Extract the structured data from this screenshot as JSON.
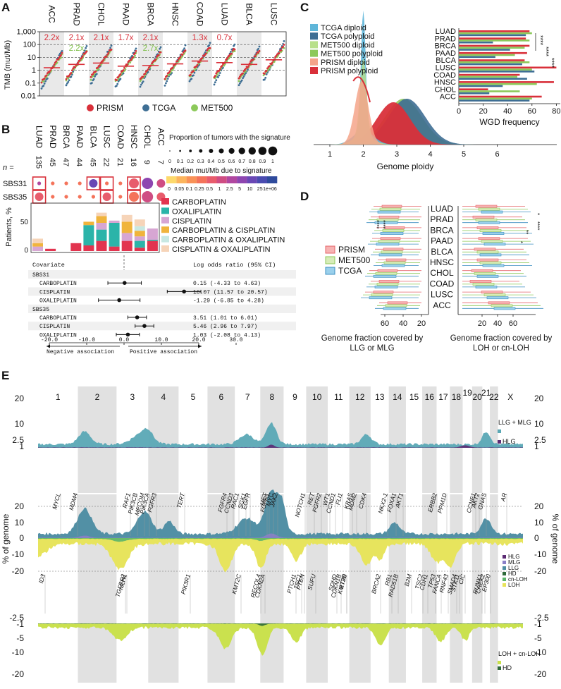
{
  "panel_labels": {
    "a": "A",
    "b": "B",
    "c": "C",
    "d": "D",
    "e": "E"
  },
  "panel_a": {
    "cancers": [
      "ACC",
      "PRAD",
      "CHOL",
      "PAAD",
      "BRCA",
      "HNSC",
      "COAD",
      "LUAD",
      "BLCA",
      "LUSC"
    ],
    "red_ratios": [
      "2.2x",
      "2.1x",
      "2.1x",
      "1.7x",
      "2.1x",
      "",
      "1.3x",
      "0.7x",
      "",
      ""
    ],
    "green_ratios": [
      "",
      "2.2x",
      "",
      "",
      "2.7x",
      "",
      "",
      "",
      "",
      ""
    ],
    "ylabel": "TMB (mut/Mb)",
    "yticks": [
      "1,000",
      "100",
      "10",
      "1",
      "0.1",
      "0.01"
    ],
    "legend": [
      "PRISM",
      "TCGA",
      "MET500"
    ],
    "colors": {
      "prism": "#d9303a",
      "tcga": "#3e6e94",
      "met500": "#8cc95a",
      "ratio_red": "#d9303a",
      "ratio_green": "#7fbf4a"
    }
  },
  "panel_b": {
    "cancers": [
      "LUAD",
      "PRAD",
      "BRCA",
      "PAAD",
      "BLCA",
      "LUSC",
      "COAD",
      "HNSC",
      "CHOL",
      "ACC"
    ],
    "n_label": "n =",
    "n": [
      "135",
      "45",
      "47",
      "44",
      "45",
      "22",
      "21",
      "16",
      "9",
      "7"
    ],
    "signatures": [
      "SBS31",
      "SBS35"
    ],
    "size_legend_title": "Proportion of tumors with the signature",
    "size_ticks": [
      "0",
      "0.1",
      "0.2",
      "0.3",
      "0.4",
      "0.5",
      "0.6",
      "0.7",
      "0.8",
      "0.9",
      "1"
    ],
    "color_legend_title": "Median mut/Mb due to signature",
    "color_ticks": [
      "0",
      "0.05",
      "0.1",
      "0.25",
      "0.5",
      "1",
      "2.5",
      "5",
      "10",
      "25",
      "1e+06"
    ],
    "color_scale": [
      "#fdd96b",
      "#fcb55d",
      "#f99257",
      "#f4735a",
      "#e85c6c",
      "#cf4d83",
      "#b047a0",
      "#8e46b0",
      "#6a48b5",
      "#4a4bb0",
      "#2e4a9c"
    ],
    "bar_ylabel": "Patients, %",
    "bar_yticks": [
      "50",
      "0"
    ],
    "treatments": [
      "CARBOPLATIN",
      "OXALIPLATIN",
      "CISPLATIN",
      "CARBOPLATIN & CISPLATIN",
      "CARBOPLATIN & OXALIPLATIN",
      "CISPLATIN & OXALIPLATIN"
    ],
    "treatment_colors": [
      "#e2344f",
      "#2bb4a9",
      "#d7a6d3",
      "#f0b43c",
      "#c8e8e2",
      "#f6d4b8"
    ],
    "forest_header_left": "Covariate",
    "forest_header_right": "Log odds ratio (95% CI)",
    "forest_rows": [
      {
        "label": "SBS31",
        "header": true
      },
      {
        "label": "CARBOPLATIN",
        "or": "0.15 (-4.33 to 4.63)",
        "est": 0.15,
        "lo": -4.33,
        "hi": 4.63
      },
      {
        "label": "CISPLATIN",
        "or": "16.07 (11.57 to 20.57)",
        "est": 16.07,
        "lo": 11.57,
        "hi": 20.57
      },
      {
        "label": "OXALIPLATIN",
        "or": "-1.29 (-6.85 to 4.28)",
        "est": -1.29,
        "lo": -6.85,
        "hi": 4.28
      },
      {
        "label": "SBS35",
        "header": true
      },
      {
        "label": "CARBOPLATIN",
        "or": "3.51 (1.01 to 6.01)",
        "est": 3.51,
        "lo": 1.01,
        "hi": 6.01
      },
      {
        "label": "CISPLATIN",
        "or": "5.46 (2.96 to 7.97)",
        "est": 5.46,
        "lo": 2.96,
        "hi": 7.97
      },
      {
        "label": "OXALIPLATIN",
        "or": "1.03 (-2.08 to 4.13)",
        "est": 1.03,
        "lo": -2.08,
        "hi": 4.13
      }
    ],
    "forest_xticks": [
      "-20.0",
      "-10.0",
      "0.0",
      "10.0",
      "20.0",
      "30.0"
    ],
    "negative_label": "Negative association",
    "positive_label": "Positive association"
  },
  "panel_c": {
    "legend": [
      "TCGA diploid",
      "TCGA polyploid",
      "MET500 diploid",
      "MET500 polyploid",
      "PRISM diploid",
      "PRISM polyploid"
    ],
    "legend_colors": [
      "#5fb6d9",
      "#3e6e94",
      "#b8e08a",
      "#8cc95a",
      "#f4a48a",
      "#d9303a"
    ],
    "xlabel": "Genome ploidy",
    "xticks": [
      "1",
      "2",
      "3",
      "4",
      "5",
      "6"
    ],
    "bar_cancers": [
      "LUAD",
      "PRAD",
      "BRCA",
      "PAAD",
      "BLCA",
      "LUSC",
      "COAD",
      "HNSC",
      "CHOL",
      "ACC"
    ],
    "bar_xlabel": "WGD frequency",
    "bar_xticks": [
      "0",
      "20",
      "40",
      "60",
      "80"
    ],
    "wgd_prism": [
      58,
      55,
      58,
      56,
      54,
      80,
      50,
      78,
      24,
      68
    ],
    "wgd_tcga": [
      55,
      28,
      42,
      30,
      52,
      62,
      56,
      36,
      25,
      58
    ],
    "wgd_met500": [
      60,
      58,
      54,
      46,
      58,
      60,
      48,
      64,
      50,
      60
    ],
    "significance": [
      "****",
      "****",
      "****"
    ]
  },
  "panel_d": {
    "cancers": [
      "LUAD",
      "PRAD",
      "BRCA",
      "PAAD",
      "BLCA",
      "HNSC",
      "CHOL",
      "COAD",
      "LUSC",
      "ACC"
    ],
    "legend": [
      "PRISM",
      "MET500",
      "TCGA"
    ],
    "left_xticks": [
      "60",
      "40",
      "20"
    ],
    "right_xticks": [
      "20",
      "40",
      "60"
    ],
    "left_xlabel_1": "Genome fraction covered by",
    "left_xlabel_2": "LLG or MLG",
    "right_xlabel_1": "Genome fraction covered by",
    "right_xlabel_2": "LOH or cn-LOH",
    "left_stars": [
      "****",
      "****"
    ],
    "right_stars": [
      "*",
      "****",
      "**",
      "*"
    ]
  },
  "panel_e": {
    "chromosomes": [
      "1",
      "2",
      "3",
      "4",
      "5",
      "6",
      "7",
      "8",
      "9",
      "10",
      "11",
      "12",
      "13",
      "14",
      "15",
      "16",
      "17",
      "18",
      "19",
      "20",
      "21",
      "22",
      "X"
    ],
    "top_yticks": [
      "20",
      "10",
      "2.5",
      "1"
    ],
    "mid_yticks": [
      "20",
      "10",
      "0",
      "-10",
      "-20"
    ],
    "bot_yticks": [
      "-1",
      "-2.5",
      "-5",
      "-10",
      "-20"
    ],
    "ylabel": "% of genome",
    "legend_top": [
      "LLG + MLG",
      "HLG"
    ],
    "legend_mid": [
      "HLG",
      "MLG",
      "LLG",
      "HD",
      "cn-LOH",
      "LOH"
    ],
    "legend_bot": [
      "LOH + cn-LOH",
      "HD"
    ],
    "amp_genes": [
      "MYCL",
      "MDM4",
      "RAF1",
      "PIK3CB",
      "MECOM",
      "PIK3CA",
      "FGFR3",
      "TERT",
      "FGFR4",
      "CCND3",
      "SGK1",
      "RAC1",
      "EGFR",
      "MET",
      "FGFR1",
      "MYC",
      "JAK2",
      "NOTCH1",
      "RET",
      "FGFR2",
      "WT1",
      "CCND1",
      "FLI1",
      "KRAS",
      "MDM2",
      "CDK4",
      "NKX2-1",
      "FOXA1",
      "AKT1",
      "ERBB2",
      "PPM1D",
      "CCNE1",
      "AKT2",
      "GNAS",
      "AR"
    ],
    "del_genes": [
      "ID3",
      "TGFBR2",
      "MLH1",
      "PIK3R1",
      "KMT2C",
      "RECQL4",
      "CDKN2A",
      "PTCH1",
      "TSC1",
      "PTEN",
      "SUFU",
      "SDHD",
      "CDKN1B",
      "ETV6",
      "KMT2D",
      "BRCA2",
      "RB1",
      "RAD51B",
      "B2M",
      "TSC2",
      "CDH1",
      "TP53",
      "FANCA",
      "RNF43",
      "SMAD4",
      "STK11",
      "CIC",
      "RUNX1",
      "CHEK2",
      "EP300"
    ]
  }
}
